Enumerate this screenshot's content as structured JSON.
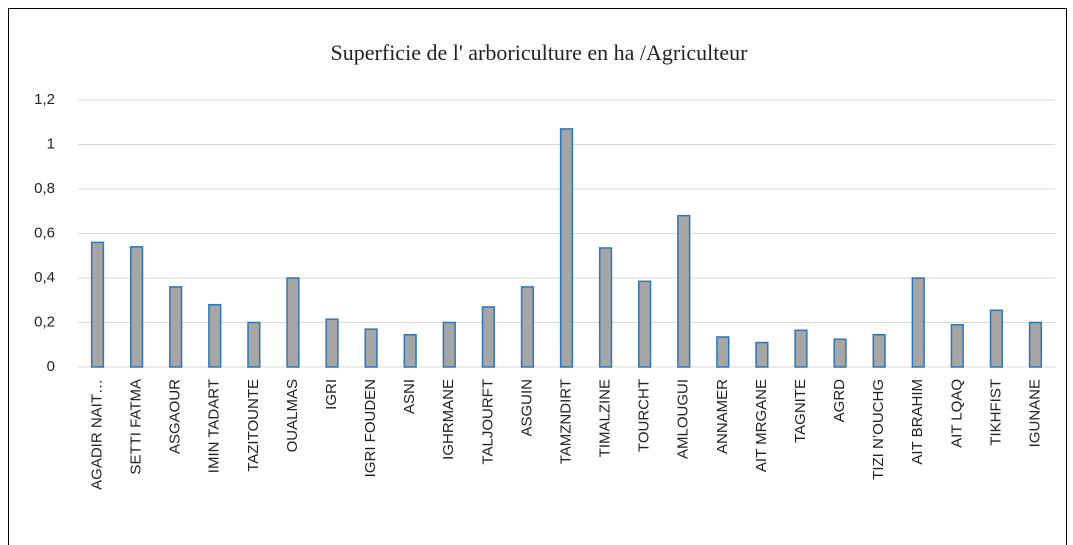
{
  "chart_data": {
    "type": "bar",
    "title": "Superficie de l' arboriculture en ha /Agriculteur",
    "categories": [
      "AGADIR NAIT…",
      "SETTI FATMA",
      "ASGAOUR",
      "IMIN TADART",
      "TAZITOUNTE",
      "OUALMAS",
      "IGRI",
      "IGRI FOUDEN",
      "ASNI",
      "IGHRMANE",
      "TALJOURFT",
      "ASGUIN",
      "TAMZNDIRT",
      "TIMALZINE",
      "TOURCHT",
      "AMLOUGUI",
      "ANNAMER",
      "AIT MRGANE",
      "TAGNITE",
      "AGRD",
      "TIZI N’OUCHG",
      "AIT BRAHIM",
      "AIT LQAQ",
      "TIKHFIST",
      "IGUNANE"
    ],
    "values": [
      0.56,
      0.54,
      0.36,
      0.28,
      0.2,
      0.4,
      0.215,
      0.17,
      0.145,
      0.2,
      0.27,
      0.36,
      1.07,
      0.535,
      0.385,
      0.68,
      0.135,
      0.11,
      0.165,
      0.125,
      0.145,
      0.4,
      0.19,
      0.255,
      0.2
    ],
    "color": "#a6a6a6",
    "edge_color": "#2e75b6",
    "ylim": [
      0,
      1.2
    ],
    "yticks": [
      0,
      {
        "value": 0.2,
        "label": "0,2"
      },
      {
        "value": 0.4,
        "label": "0,4"
      },
      {
        "value": 0.6,
        "label": "0,6"
      },
      {
        "value": 0.8,
        "label": "0,8"
      },
      1,
      {
        "value": 1.2,
        "label": "1,2"
      }
    ],
    "grid": true
  }
}
